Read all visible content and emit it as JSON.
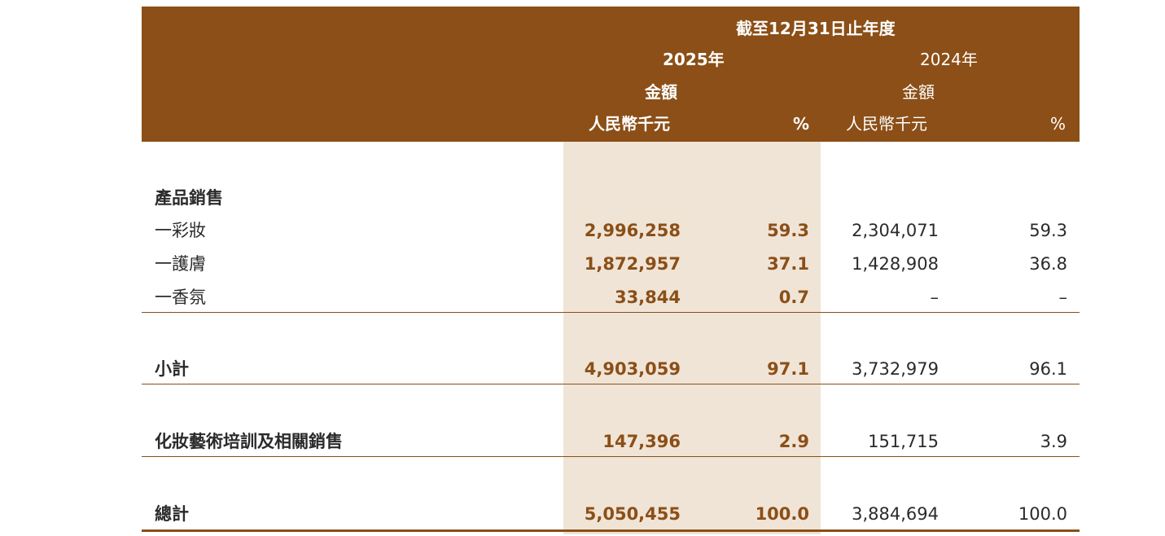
{
  "header": {
    "period": "截至12月31日止年度",
    "year_2025": "2025年",
    "year_2024": "2024年",
    "amount_2025": "金額",
    "unit_2025": "人民幣千元",
    "pct_2025": "%",
    "amount_2024": "金額",
    "unit_2024": "人民幣千元",
    "pct_2024": "%"
  },
  "section_label": "產品銷售",
  "rows": [
    {
      "label": "一彩妝",
      "amt_2025": "2,996,258",
      "pct_2025": "59.3",
      "amt_2024": "2,304,071",
      "pct_2024": "59.3"
    },
    {
      "label": "一護膚",
      "amt_2025": "1,872,957",
      "pct_2025": "37.1",
      "amt_2024": "1,428,908",
      "pct_2024": "36.8"
    },
    {
      "label": "一香氛",
      "amt_2025": "33,844",
      "pct_2025": "0.7",
      "amt_2024": "–",
      "pct_2024": "–"
    },
    {
      "label": "小計",
      "amt_2025": "4,903,059",
      "pct_2025": "97.1",
      "amt_2024": "3,732,979",
      "pct_2024": "96.1"
    },
    {
      "label": "化妝藝術培訓及相關銷售",
      "amt_2025": "147,396",
      "pct_2025": "2.9",
      "amt_2024": "151,715",
      "pct_2024": "3.9"
    },
    {
      "label": "總計",
      "amt_2025": "5,050,455",
      "pct_2025": "100.0",
      "amt_2024": "3,884,694",
      "pct_2024": "100.0"
    }
  ],
  "colors": {
    "header_bg": "#8b4f17",
    "highlight_column": "#f0e4d7",
    "current_year_text": "#8b4f17"
  }
}
